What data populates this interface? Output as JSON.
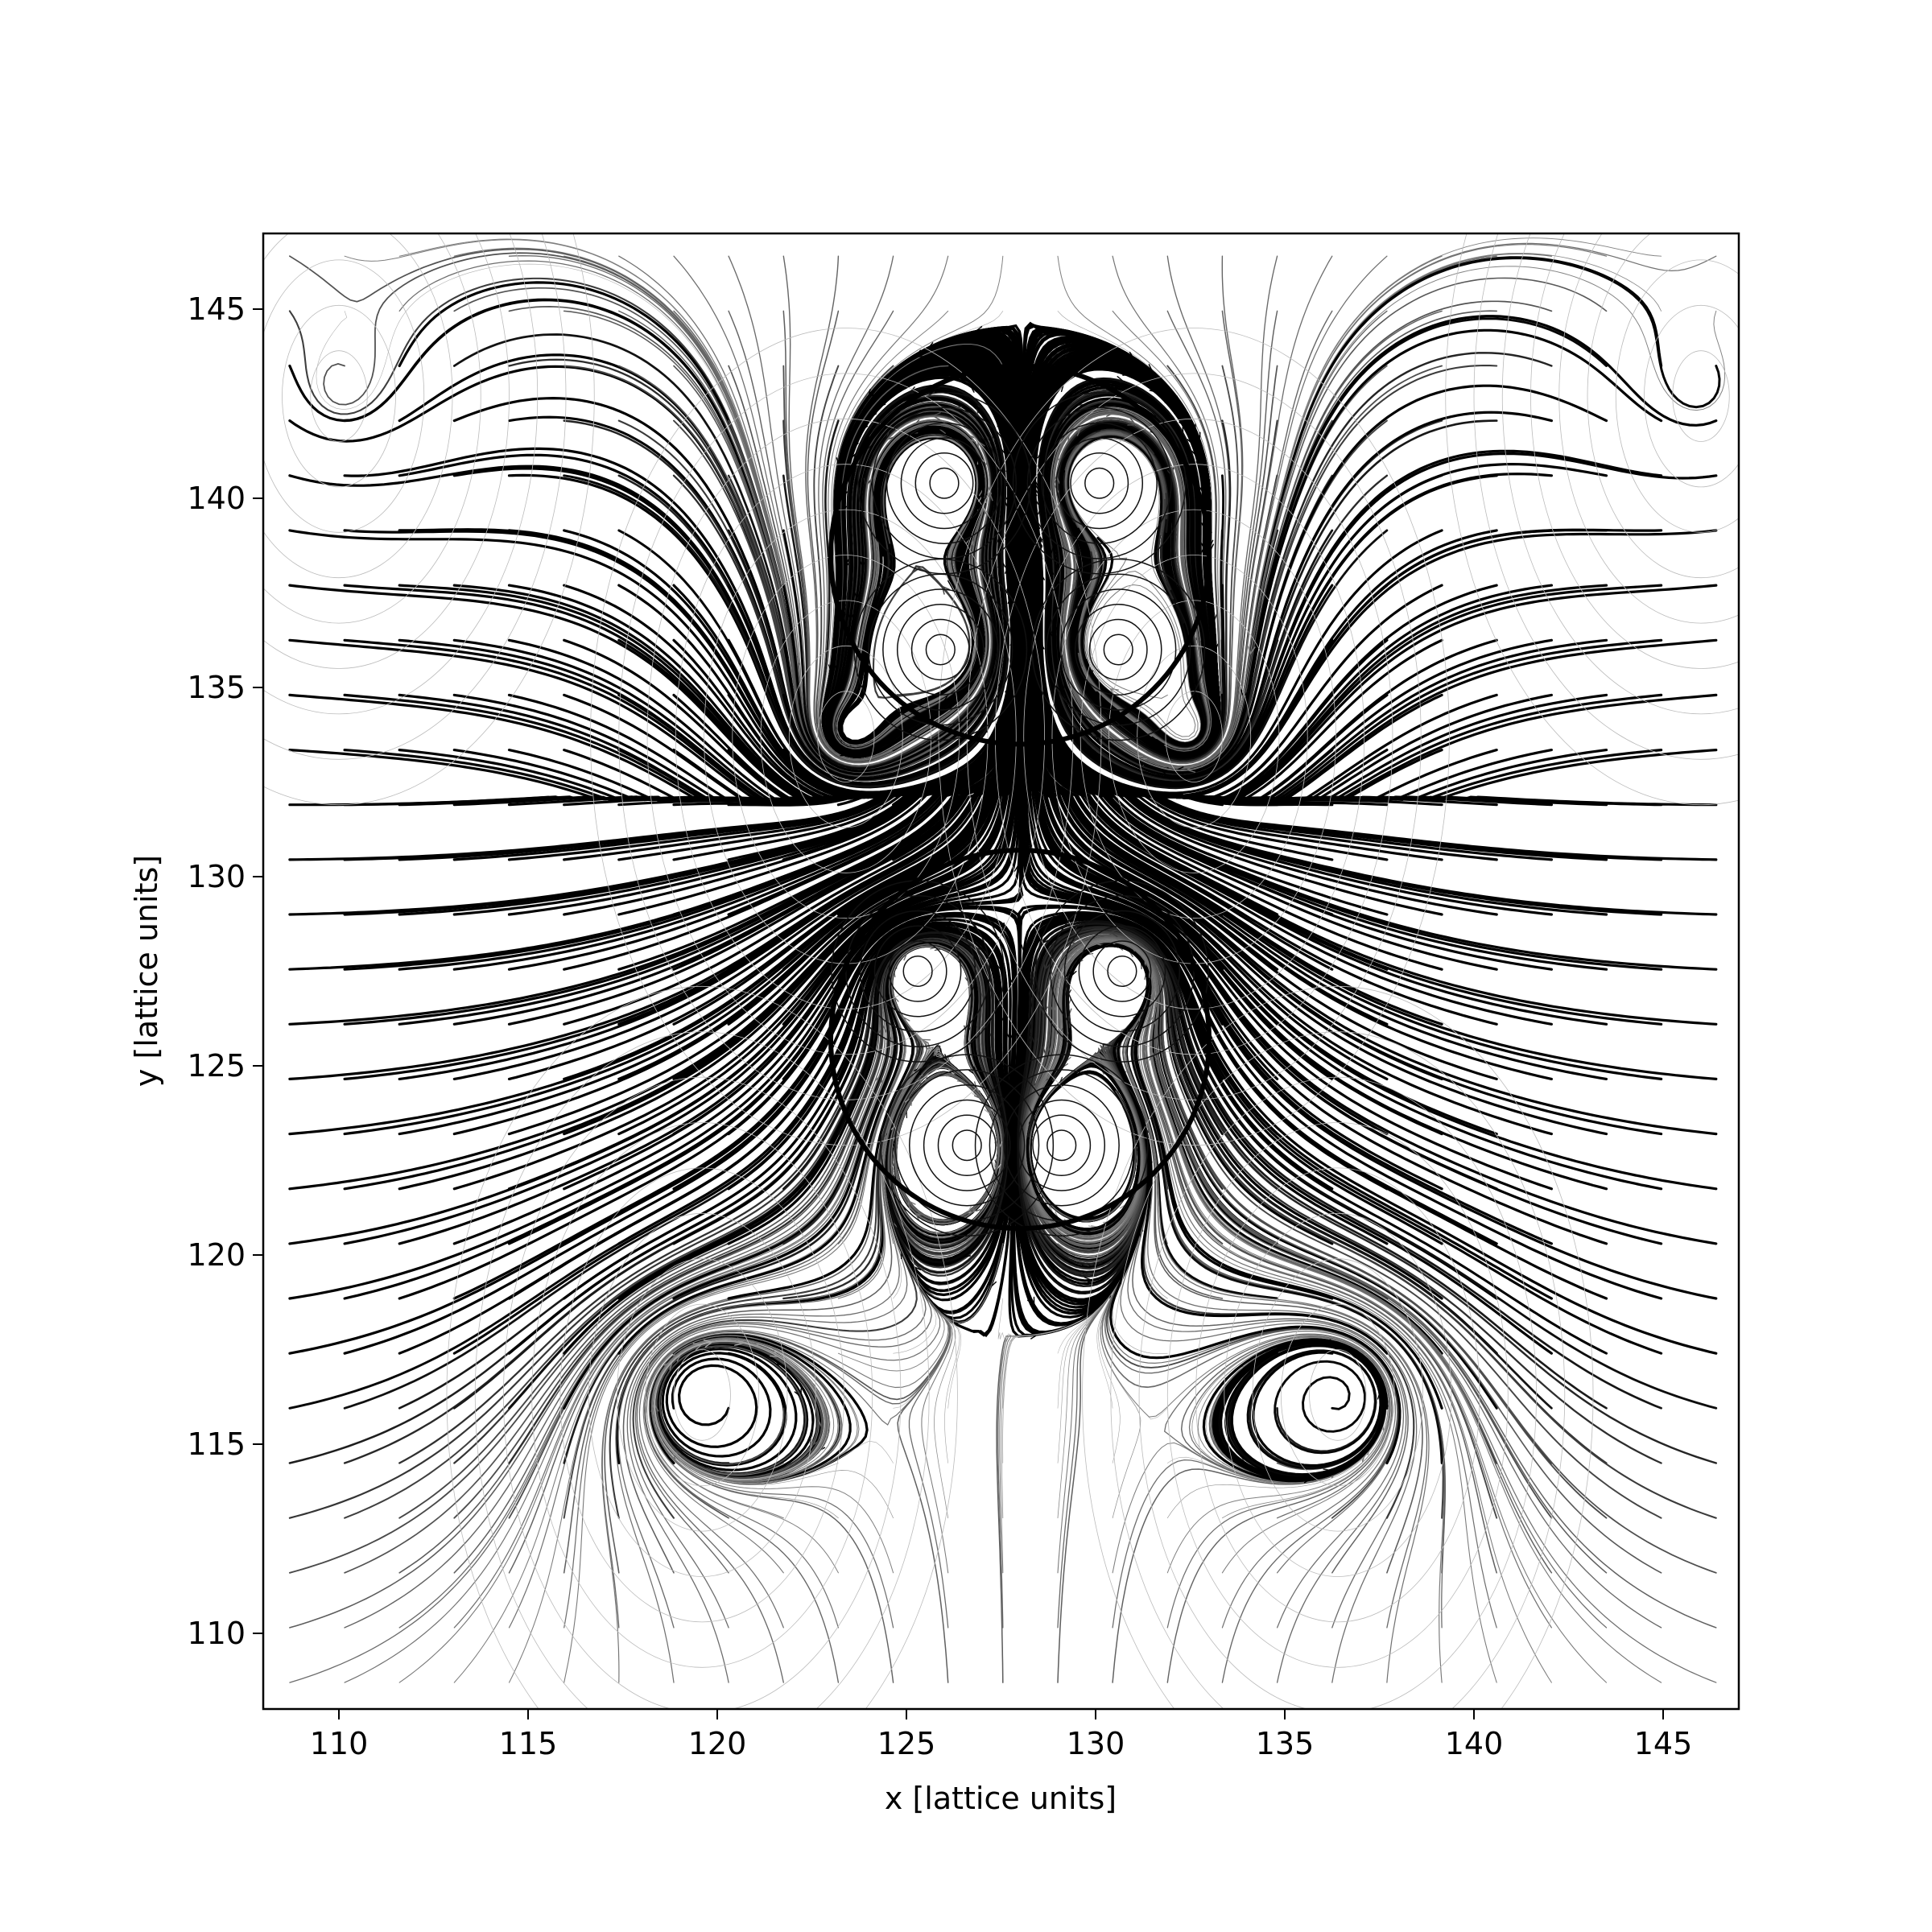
{
  "chart_data": {
    "type": "streamline",
    "title": "",
    "xlabel": "x [lattice units]",
    "ylabel": "y [lattice units]",
    "xlim": [
      108,
      147
    ],
    "ylim": [
      108,
      147
    ],
    "xticks": [
      110,
      115,
      120,
      125,
      130,
      135,
      140,
      145
    ],
    "yticks": [
      110,
      115,
      120,
      125,
      130,
      135,
      140,
      145
    ],
    "xtick_labels": [
      "110",
      "115",
      "120",
      "125",
      "130",
      "135",
      "140",
      "145"
    ],
    "ytick_labels": [
      "110",
      "115",
      "120",
      "125",
      "130",
      "135",
      "140",
      "145"
    ],
    "grid": false,
    "legend": "none",
    "particles": [
      {
        "name": "",
        "center": [
          128,
          138.5
        ],
        "radius": 5
      },
      {
        "name": "",
        "center": [
          128,
          125.7
        ],
        "radius": 5
      }
    ],
    "vortices": [
      {
        "center": [
          110.0,
          142.7
        ]
      },
      {
        "center": [
          146.0,
          142.7
        ]
      },
      {
        "center": [
          119.6,
          116.3
        ]
      },
      {
        "center": [
          136.4,
          116.3
        ]
      },
      {
        "center": [
          123.4,
          133.7
        ]
      },
      {
        "center": [
          132.6,
          133.7
        ]
      },
      {
        "center": [
          126.0,
          140.4
        ]
      },
      {
        "center": [
          130.1,
          140.4
        ]
      },
      {
        "center": [
          125.9,
          136.0
        ]
      },
      {
        "center": [
          130.6,
          136.0
        ]
      },
      {
        "center": [
          125.3,
          127.5
        ]
      },
      {
        "center": [
          130.7,
          127.5
        ]
      },
      {
        "center": [
          126.6,
          122.9
        ]
      },
      {
        "center": [
          129.1,
          122.9
        ]
      }
    ],
    "line_color": "#000000",
    "particle_color": "#000000"
  }
}
